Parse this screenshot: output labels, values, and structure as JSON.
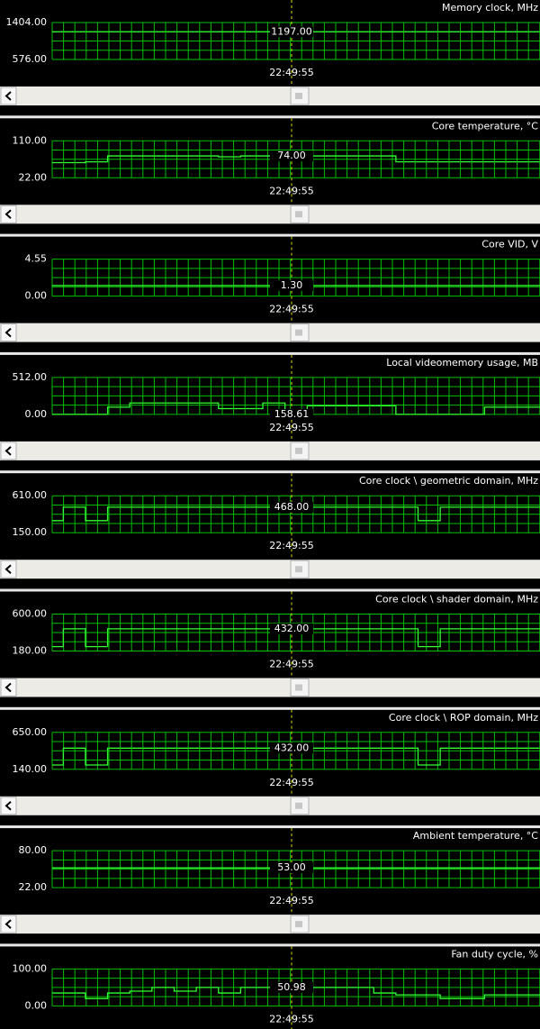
{
  "panels": [
    {
      "title": "Memory clock, MHz",
      "ymax": {
        "value": 1404,
        "label": "1404.00"
      },
      "ymin": {
        "value": 576,
        "label": "576.00"
      },
      "current": "1197.00",
      "time": "22:49:55",
      "trace": [
        1197,
        1197,
        1197,
        1197,
        1197,
        1197,
        1197,
        1197,
        1197,
        1197,
        1197,
        1197,
        1197,
        1197,
        1197,
        1197,
        1197,
        1197,
        1197,
        1197,
        1197,
        1197,
        1197
      ]
    },
    {
      "title": "Core temperature, °C",
      "ymax": {
        "value": 110,
        "label": "110.00"
      },
      "ymin": {
        "value": 22,
        "label": "22.00"
      },
      "current": "74.00",
      "time": "22:49:55",
      "trace": [
        58,
        58,
        60,
        74,
        74,
        74,
        74,
        74,
        72,
        74,
        74,
        74,
        74,
        74,
        74,
        74,
        60,
        60,
        60,
        60,
        60,
        60,
        60
      ]
    },
    {
      "title": "Core VID, V",
      "ymax": {
        "value": 4.55,
        "label": "4.55"
      },
      "ymin": {
        "value": 0,
        "label": "0.00"
      },
      "current": "1.30",
      "time": "22:49:55",
      "trace": [
        1.3,
        1.3,
        1.3,
        1.3,
        1.3,
        1.3,
        1.3,
        1.3,
        1.3,
        1.3,
        1.3,
        1.3,
        1.3,
        1.3,
        1.3,
        1.3,
        1.3,
        1.3,
        1.3,
        1.3,
        1.3,
        1.3,
        1.3
      ]
    },
    {
      "title": "Local videomemory usage, MB",
      "ymax": {
        "value": 512,
        "label": "512.00"
      },
      "ymin": {
        "value": 0,
        "label": "0.00"
      },
      "current": "158.61",
      "time": "22:49:55",
      "trace": [
        0,
        0,
        0,
        100,
        158,
        158,
        158,
        158,
        80,
        80,
        158,
        0,
        120,
        120,
        120,
        120,
        0,
        0,
        0,
        0,
        100,
        100,
        100
      ]
    },
    {
      "title": "Core clock \\ geometric domain, MHz",
      "ymax": {
        "value": 610,
        "label": "610.00"
      },
      "ymin": {
        "value": 150,
        "label": "150.00"
      },
      "current": "468.00",
      "time": "22:49:55",
      "trace": [
        300,
        468,
        300,
        468,
        468,
        468,
        468,
        468,
        468,
        468,
        468,
        468,
        468,
        468,
        468,
        468,
        468,
        300,
        468,
        468,
        468,
        468,
        468
      ]
    },
    {
      "title": "Core clock \\ shader domain, MHz",
      "ymax": {
        "value": 600,
        "label": "600.00"
      },
      "ymin": {
        "value": 180,
        "label": "180.00"
      },
      "current": "432.00",
      "time": "22:49:55",
      "trace": [
        230,
        432,
        230,
        432,
        432,
        432,
        432,
        432,
        432,
        432,
        432,
        432,
        432,
        432,
        432,
        432,
        432,
        230,
        432,
        432,
        432,
        432,
        432
      ]
    },
    {
      "title": "Core clock \\ ROP domain, MHz",
      "ymax": {
        "value": 650,
        "label": "650.00"
      },
      "ymin": {
        "value": 140,
        "label": "140.00"
      },
      "current": "432.00",
      "time": "22:49:55",
      "trace": [
        200,
        432,
        200,
        432,
        432,
        432,
        432,
        432,
        432,
        432,
        432,
        432,
        432,
        432,
        432,
        432,
        432,
        200,
        432,
        432,
        432,
        432,
        432
      ]
    },
    {
      "title": "Ambient temperature, °C",
      "ymax": {
        "value": 80,
        "label": "80.00"
      },
      "ymin": {
        "value": 22,
        "label": "22.00"
      },
      "current": "53.00",
      "time": "22:49:55",
      "trace": [
        53,
        53,
        53,
        53,
        53,
        53,
        53,
        53,
        53,
        53,
        53,
        53,
        53,
        53,
        53,
        53,
        53,
        53,
        53,
        53,
        53,
        53,
        53
      ]
    },
    {
      "title": "Fan duty cycle, %",
      "ymax": {
        "value": 100,
        "label": "100.00"
      },
      "ymin": {
        "value": 0,
        "label": "0.00"
      },
      "current": "50.98",
      "time": "22:49:55",
      "trace": [
        35,
        35,
        20,
        35,
        40,
        50,
        40,
        50,
        35,
        50,
        50,
        50,
        50,
        50,
        50,
        35,
        30,
        30,
        20,
        20,
        30,
        30,
        30
      ]
    }
  ]
}
